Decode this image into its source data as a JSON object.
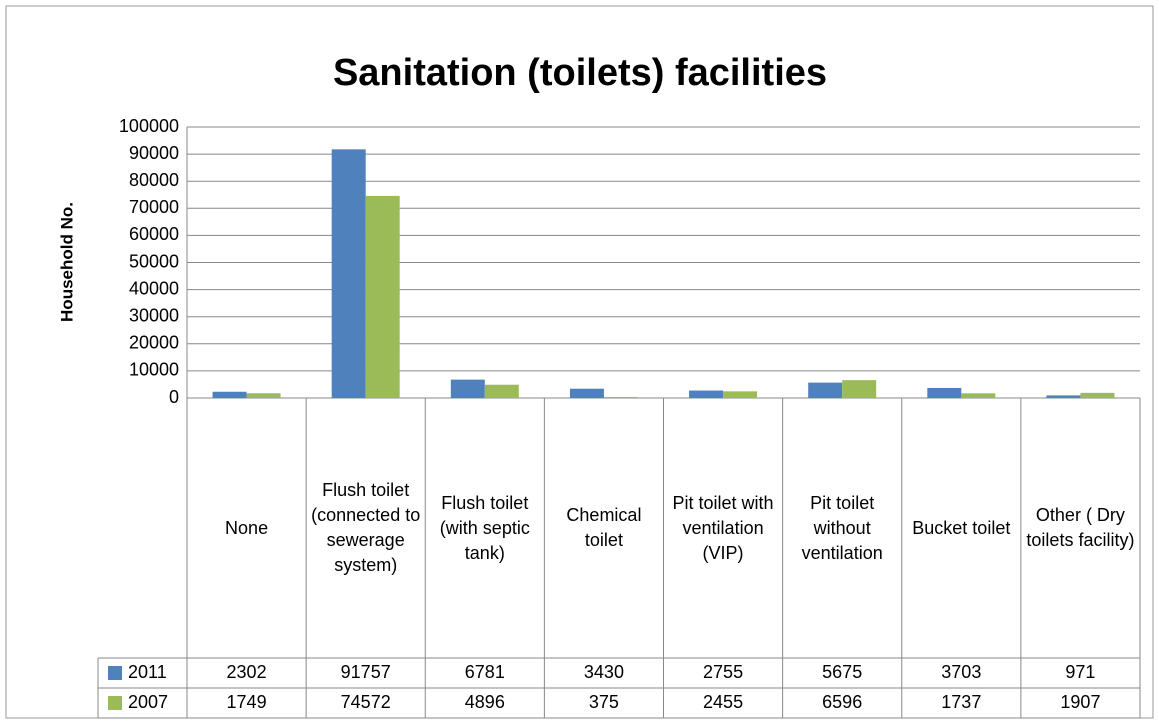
{
  "chart_data": {
    "type": "bar",
    "title": "Sanitation (toilets) facilities",
    "y_label": "Household No.",
    "categories": [
      "None",
      "Flush toilet (connected to sewerage system)",
      "Flush toilet (with septic tank)",
      "Chemical toilet",
      "Pit toilet with ventilation (VIP)",
      "Pit toilet without ventilation",
      "Bucket toilet",
      "Other ( Dry toilets facility)"
    ],
    "series": [
      {
        "name": "2011",
        "color": "#4f81bd",
        "values": [
          2302,
          91757,
          6781,
          3430,
          2755,
          5675,
          3703,
          971
        ]
      },
      {
        "name": "2007",
        "color": "#9bbb59",
        "values": [
          1749,
          74572,
          4896,
          375,
          2455,
          6596,
          1737,
          1907
        ]
      }
    ],
    "ylim": [
      0,
      100000
    ],
    "yticks": [
      0,
      10000,
      20000,
      30000,
      40000,
      50000,
      60000,
      70000,
      80000,
      90000,
      100000
    ],
    "grid": true
  }
}
